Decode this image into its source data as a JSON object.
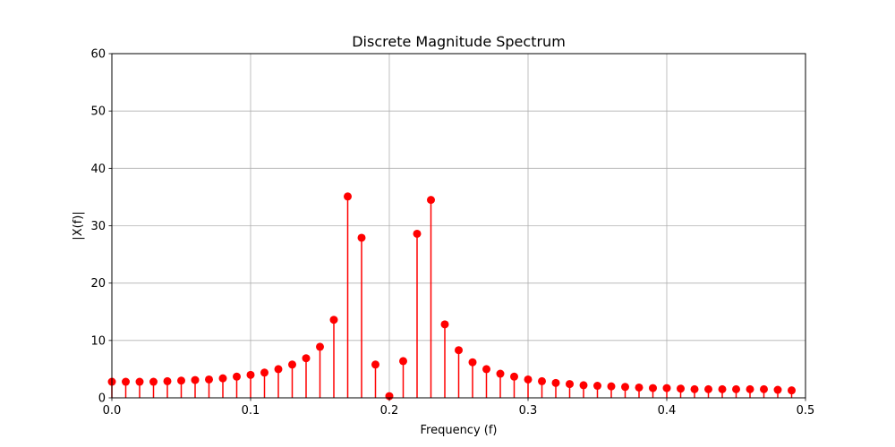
{
  "chart_data": {
    "type": "stem",
    "title": "Discrete Magnitude Spectrum",
    "xlabel": "Frequency (f)",
    "ylabel": "|X(f)|",
    "xlim": [
      0,
      0.5
    ],
    "ylim": [
      0,
      60
    ],
    "xticks": [
      "0.0",
      "0.1",
      "0.2",
      "0.3",
      "0.4",
      "0.5"
    ],
    "yticks": [
      "0",
      "10",
      "20",
      "30",
      "40",
      "50",
      "60"
    ],
    "grid": true,
    "color": "#ff0000",
    "series": [
      {
        "x": [
          0.0,
          0.01,
          0.02,
          0.03,
          0.04,
          0.05,
          0.06,
          0.07,
          0.08,
          0.09,
          0.1,
          0.11,
          0.12,
          0.13,
          0.14,
          0.15,
          0.16,
          0.17,
          0.18,
          0.19,
          0.2,
          0.21,
          0.22,
          0.23,
          0.24,
          0.25,
          0.26,
          0.27,
          0.28,
          0.29,
          0.3,
          0.31,
          0.32,
          0.33,
          0.34,
          0.35,
          0.36,
          0.37,
          0.38,
          0.39,
          0.4,
          0.41,
          0.42,
          0.43,
          0.44,
          0.45,
          0.46,
          0.47,
          0.48,
          0.49
        ],
        "y": [
          2.8,
          2.8,
          2.8,
          2.8,
          2.9,
          3.0,
          3.1,
          3.2,
          3.4,
          3.7,
          4.0,
          4.4,
          5.0,
          5.8,
          6.9,
          8.9,
          13.6,
          35.1,
          27.9,
          5.8,
          0.3,
          6.4,
          28.6,
          34.5,
          12.8,
          8.3,
          6.2,
          5.0,
          4.2,
          3.7,
          3.2,
          2.9,
          2.6,
          2.4,
          2.2,
          2.1,
          2.0,
          1.9,
          1.8,
          1.7,
          1.7,
          1.6,
          1.5,
          1.5,
          1.5,
          1.5,
          1.5,
          1.5,
          1.4,
          1.3
        ]
      }
    ]
  }
}
